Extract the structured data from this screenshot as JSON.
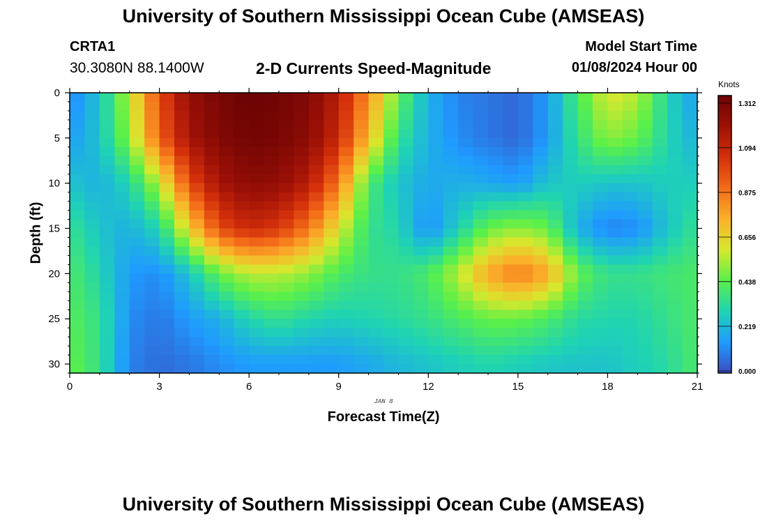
{
  "header": {
    "title": "University of Southern Mississippi Ocean Cube (AMSEAS)",
    "station_id": "CRTA1",
    "station_coords": "30.3080N  88.1400W",
    "model_start_label": "Model Start Time",
    "model_start_value": "01/08/2024 Hour 00"
  },
  "footer": {
    "title": "University of Southern Mississippi Ocean Cube (AMSEAS)"
  },
  "chart_data": {
    "type": "heatmap",
    "title": "2-D Currents Speed-Magnitude",
    "xlabel": "Forecast Time(Z)",
    "ylabel": "Depth (ft)",
    "date_label": "JAN 8",
    "xlim": [
      0,
      21
    ],
    "ylim": [
      31,
      0
    ],
    "x_ticks": [
      0,
      3,
      6,
      9,
      12,
      15,
      18,
      21
    ],
    "y_ticks": [
      0,
      5,
      10,
      15,
      20,
      25,
      30
    ],
    "colorbar": {
      "units": "Knots",
      "ticks": [
        "0.000",
        "0.219",
        "0.438",
        "0.656",
        "0.875",
        "1.094",
        "1.312"
      ],
      "min": 0,
      "max": 1.312,
      "colors": [
        "#3b4cc0",
        "#1f9bff",
        "#1fd3b4",
        "#5af04a",
        "#d6e82d",
        "#fbb02a",
        "#f36b18",
        "#d32f0b",
        "#9e1106",
        "#6e0404"
      ]
    },
    "speed_field": {
      "description": "Current speed (knots) by forecast hour (x) and depth in ft (y)",
      "hours": [
        0,
        1,
        2,
        3,
        4,
        5,
        6,
        7,
        8,
        9,
        10,
        11,
        12,
        13,
        14,
        15,
        16,
        17,
        18,
        19,
        20,
        21
      ],
      "depths": [
        0,
        5,
        10,
        15,
        20,
        25,
        30
      ],
      "values": [
        [
          0.1,
          0.25,
          0.55,
          0.95,
          1.2,
          1.28,
          1.32,
          1.3,
          1.25,
          1.1,
          0.8,
          0.45,
          0.2,
          0.1,
          0.08,
          0.05,
          0.15,
          0.4,
          0.6,
          0.55,
          0.3,
          0.15
        ],
        [
          0.15,
          0.25,
          0.5,
          0.9,
          1.15,
          1.25,
          1.3,
          1.28,
          1.22,
          1.05,
          0.7,
          0.35,
          0.2,
          0.12,
          0.08,
          0.05,
          0.15,
          0.35,
          0.5,
          0.45,
          0.3,
          0.2
        ],
        [
          0.25,
          0.2,
          0.3,
          0.55,
          0.95,
          1.15,
          1.22,
          1.2,
          1.1,
          0.85,
          0.4,
          0.25,
          0.18,
          0.2,
          0.18,
          0.15,
          0.25,
          0.28,
          0.25,
          0.25,
          0.28,
          0.28
        ],
        [
          0.35,
          0.25,
          0.2,
          0.3,
          0.65,
          0.95,
          1.05,
          1.0,
          0.85,
          0.6,
          0.35,
          0.3,
          0.12,
          0.28,
          0.45,
          0.5,
          0.45,
          0.2,
          0.1,
          0.12,
          0.25,
          0.35
        ],
        [
          0.4,
          0.3,
          0.15,
          0.12,
          0.25,
          0.45,
          0.55,
          0.55,
          0.5,
          0.4,
          0.35,
          0.35,
          0.4,
          0.55,
          0.75,
          0.85,
          0.75,
          0.45,
          0.35,
          0.35,
          0.38,
          0.4
        ],
        [
          0.42,
          0.35,
          0.12,
          0.08,
          0.15,
          0.2,
          0.3,
          0.35,
          0.3,
          0.28,
          0.3,
          0.32,
          0.35,
          0.4,
          0.45,
          0.45,
          0.4,
          0.32,
          0.3,
          0.3,
          0.35,
          0.4
        ],
        [
          0.45,
          0.35,
          0.1,
          0.06,
          0.08,
          0.12,
          0.15,
          0.15,
          0.15,
          0.15,
          0.18,
          0.22,
          0.25,
          0.28,
          0.3,
          0.28,
          0.26,
          0.25,
          0.25,
          0.28,
          0.32,
          0.4
        ]
      ]
    }
  }
}
